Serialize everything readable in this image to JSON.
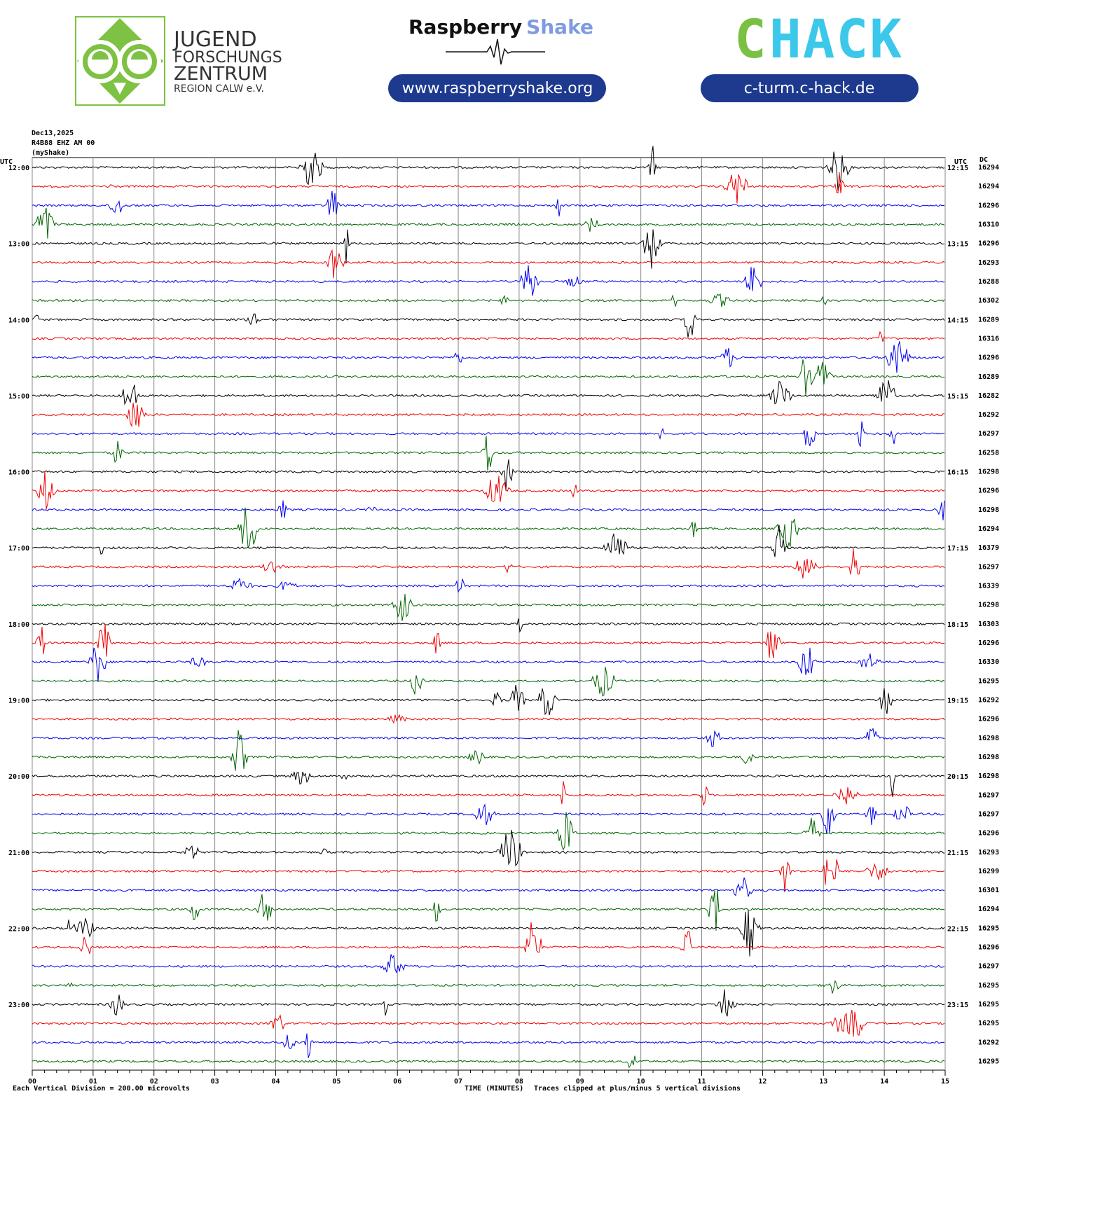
{
  "header": {
    "jfz_lines": [
      "JUGEND",
      "FORSCHUNGS",
      "ZENTRUM",
      "REGION CALW e.V."
    ],
    "rs_word1": "Raspberry",
    "rs_word2": "Shake",
    "rs_url": "www.raspberryshake.org",
    "chack_c": "C",
    "chack_rest": "HACK",
    "chack_url": "c-turm.c-hack.de"
  },
  "helicorder": {
    "info_lines": [
      "Dec13,2025",
      "R4B88 EHZ AM 00",
      "(myShake)"
    ],
    "left_axis_title": "UTC",
    "right_axis_title": "UTC",
    "dc_title": "DC",
    "left_labels": [
      "12:00",
      "13:00",
      "14:00",
      "15:00",
      "16:00",
      "17:00",
      "18:00",
      "19:00",
      "20:00",
      "21:00",
      "22:00",
      "23:00"
    ],
    "right_labels": [
      "12:15",
      "13:15",
      "14:15",
      "15:15",
      "16:15",
      "17:15",
      "18:15",
      "19:15",
      "20:15",
      "21:15",
      "22:15",
      "23:15"
    ],
    "dc_offsets": [
      16294,
      16294,
      16296,
      16310,
      16296,
      16293,
      16288,
      16302,
      16289,
      16316,
      16296,
      16289,
      16282,
      16292,
      16297,
      16258,
      16298,
      16296,
      16298,
      16294,
      16379,
      16297,
      16339,
      16298,
      16303,
      16296,
      16330,
      16295,
      16292,
      16296,
      16298,
      16298,
      16298,
      16297,
      16297,
      16296,
      16293,
      16299,
      16301,
      16294,
      16295,
      16296,
      16297,
      16295,
      16295,
      16295,
      16292,
      16295
    ],
    "trace_colors": [
      "#000000",
      "#ee0000",
      "#0000ee",
      "#006400"
    ],
    "xlim": [
      0,
      15
    ],
    "xticks": [
      {
        "value": 0,
        "label": "00"
      },
      {
        "value": 1,
        "label": "01"
      },
      {
        "value": 2,
        "label": "02"
      },
      {
        "value": 3,
        "label": "03"
      },
      {
        "value": 4,
        "label": "04"
      },
      {
        "value": 5,
        "label": "05"
      },
      {
        "value": 6,
        "label": "06"
      },
      {
        "value": 7,
        "label": "07"
      },
      {
        "value": 8,
        "label": "08"
      },
      {
        "value": 9,
        "label": "09"
      },
      {
        "value": 10,
        "label": "10"
      },
      {
        "value": 11,
        "label": "11"
      },
      {
        "value": 12,
        "label": "12"
      },
      {
        "value": 13,
        "label": "13"
      },
      {
        "value": 14,
        "label": "14"
      },
      {
        "value": 15,
        "label": "15"
      }
    ],
    "xlabel": "TIME (MINUTES)",
    "scale_note": "Each Vertical Division =  200.00 microvolts",
    "clip_note": "Traces clipped at plus/minus 5 vertical divisions",
    "grid": true
  }
}
